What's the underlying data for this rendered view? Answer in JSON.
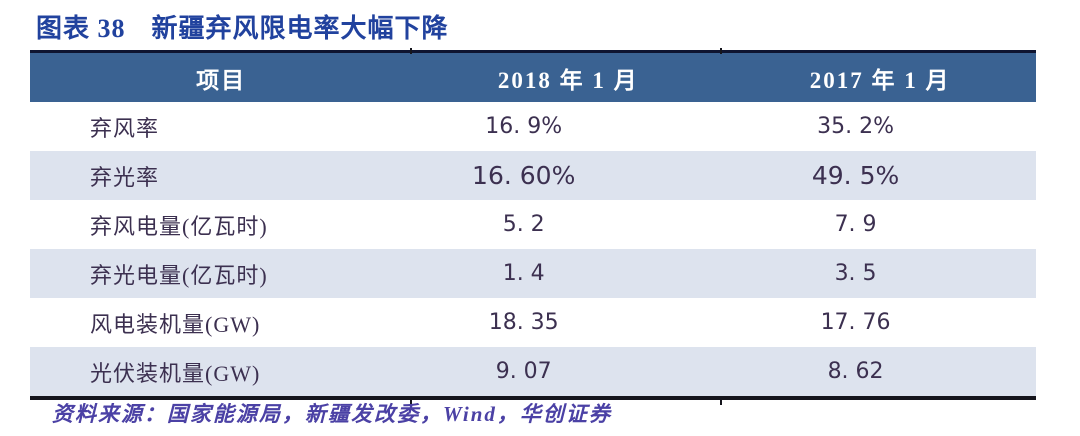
{
  "figure": {
    "label": "图表 38",
    "title": "新疆弃风限电率大幅下降",
    "source": "资料来源：国家能源局，新疆发改委，Wind，华创证券"
  },
  "table": {
    "columns": [
      "项目",
      "2018 年 1 月",
      "2017 年 1 月"
    ],
    "rows": [
      {
        "item": "弃风率",
        "jan2018": "16. 9%",
        "jan2017": "35. 2%"
      },
      {
        "item": "弃光率",
        "jan2018": "16. 60%",
        "jan2017": "49. 5%"
      },
      {
        "item": "弃风电量(亿瓦时)",
        "jan2018": "5. 2",
        "jan2017": "7. 9"
      },
      {
        "item": "弃光电量(亿瓦时)",
        "jan2018": "1. 4",
        "jan2017": "3. 5"
      },
      {
        "item": "风电装机量(GW)",
        "jan2018": "18. 35",
        "jan2017": "17. 76"
      },
      {
        "item": "光伏装机量(GW)",
        "jan2018": "9. 07",
        "jan2017": "8. 62"
      }
    ]
  },
  "chart_data": {
    "type": "table",
    "title": "新疆弃风限电率大幅下降",
    "columns": [
      "项目",
      "2018年1月",
      "2017年1月"
    ],
    "rows": [
      [
        "弃风率",
        "16.9%",
        "35.2%"
      ],
      [
        "弃光率",
        "16.60%",
        "49.5%"
      ],
      [
        "弃风电量(亿瓦时)",
        5.2,
        7.9
      ],
      [
        "弃光电量(亿瓦时)",
        1.4,
        3.5
      ],
      [
        "风电装机量(GW)",
        18.35,
        17.76
      ],
      [
        "光伏装机量(GW)",
        9.07,
        8.62
      ]
    ]
  },
  "colors": {
    "title_blue": "#21429e",
    "header_bg": "#3a6292",
    "header_text": "#ffffff",
    "top_border": "#0e1430",
    "bottom_border": "#15151c",
    "row_shade": "#dde3ee",
    "body_text": "#3c3050",
    "source_text": "#4b41a5"
  }
}
